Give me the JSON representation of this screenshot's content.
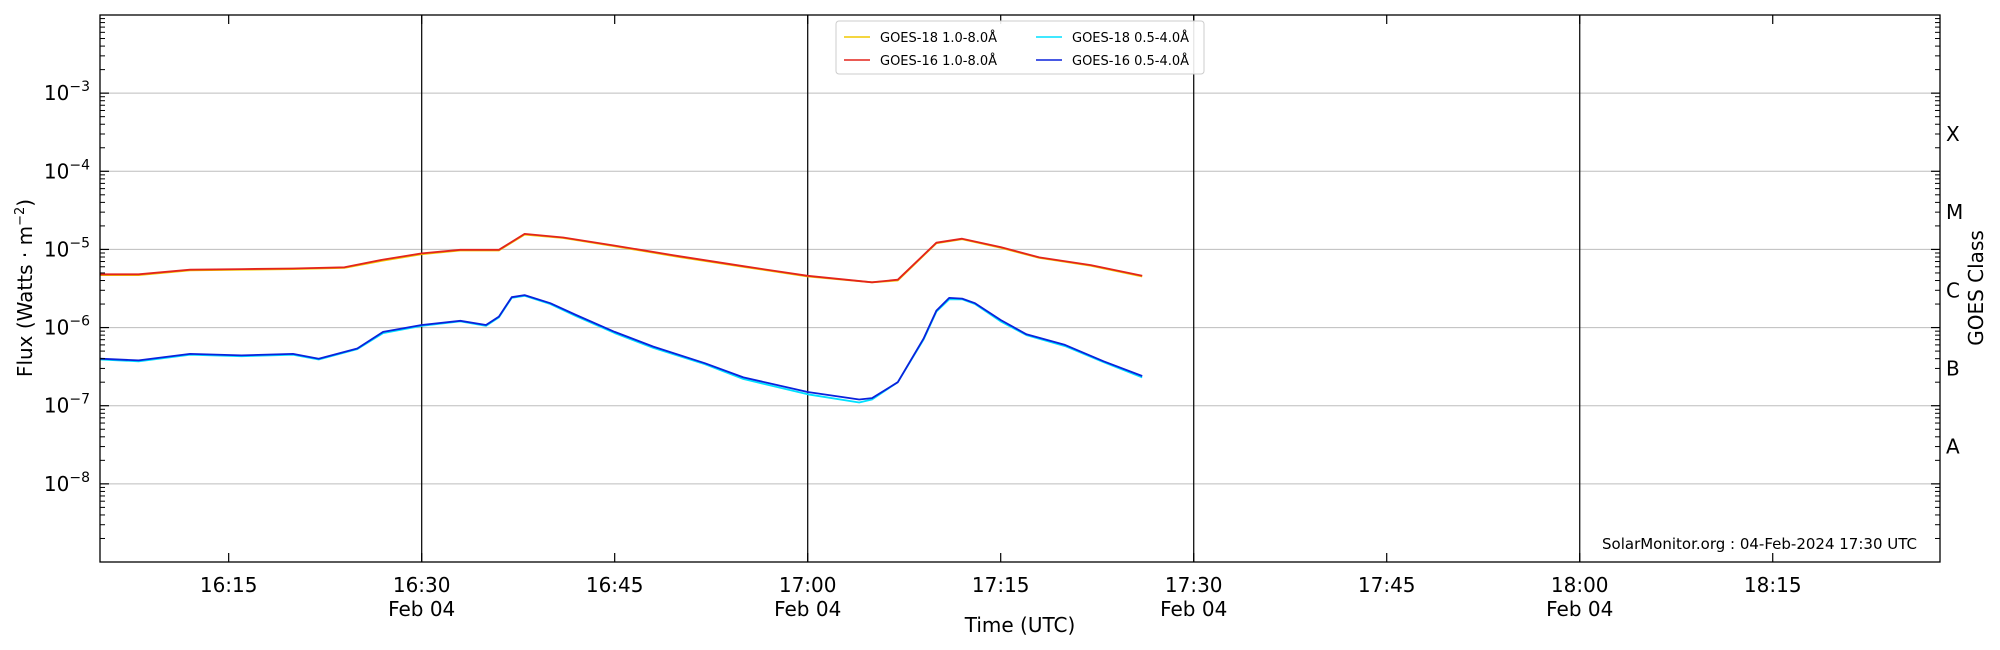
{
  "chart_data": {
    "type": "line",
    "title": "",
    "xlabel": "Time (UTC)",
    "ylabel_main": "Flux (Watts · m",
    "ylabel_sup": "−2",
    "ylabel_close": ")",
    "ylabel_right": "GOES Class",
    "y_scale": "log",
    "ylim": [
      1e-09,
      0.01
    ],
    "xlim": [
      "16:05",
      "18:28"
    ],
    "grid": "horizontal at decades",
    "y_ticks": [
      {
        "value": 0.001,
        "base": "10",
        "exp": "−3"
      },
      {
        "value": 0.0001,
        "base": "10",
        "exp": "−4"
      },
      {
        "value": 1e-05,
        "base": "10",
        "exp": "−5"
      },
      {
        "value": 1e-06,
        "base": "10",
        "exp": "−6"
      },
      {
        "value": 1e-07,
        "base": "10",
        "exp": "−7"
      },
      {
        "value": 1e-08,
        "base": "10",
        "exp": "−8"
      }
    ],
    "x_ticks": [
      {
        "time": "16:15",
        "label": "16:15",
        "sublabel": ""
      },
      {
        "time": "16:30",
        "label": "16:30",
        "sublabel": "Feb 04"
      },
      {
        "time": "16:45",
        "label": "16:45",
        "sublabel": ""
      },
      {
        "time": "17:00",
        "label": "17:00",
        "sublabel": "Feb 04"
      },
      {
        "time": "17:15",
        "label": "17:15",
        "sublabel": ""
      },
      {
        "time": "17:30",
        "label": "17:30",
        "sublabel": "Feb 04"
      },
      {
        "time": "17:45",
        "label": "17:45",
        "sublabel": ""
      },
      {
        "time": "18:00",
        "label": "18:00",
        "sublabel": "Feb 04"
      },
      {
        "time": "18:15",
        "label": "18:15",
        "sublabel": ""
      }
    ],
    "vertical_lines": [
      "16:30",
      "17:00",
      "17:30",
      "18:00"
    ],
    "goes_classes": [
      {
        "label": "X",
        "level": 0.0003
      },
      {
        "label": "M",
        "level": 3e-05
      },
      {
        "label": "C",
        "level": 3e-06
      },
      {
        "label": "B",
        "level": 3e-07
      },
      {
        "label": "A",
        "level": 3e-08
      }
    ],
    "legend_position": "top-center",
    "credit": "SolarMonitor.org : 04-Feb-2024 17:30 UTC",
    "series": [
      {
        "name": "GOES-18 1.0-8.0Å",
        "color": "#f0c800",
        "x": [
          "16:05",
          "16:08",
          "16:12",
          "16:16",
          "16:20",
          "16:24",
          "16:27",
          "16:30",
          "16:33",
          "16:36",
          "16:38",
          "16:41",
          "16:45",
          "16:50",
          "16:55",
          "17:00",
          "17:05",
          "17:07",
          "17:10",
          "17:12",
          "17:15",
          "17:18",
          "17:22",
          "17:26"
        ],
        "y": [
          4.7e-06,
          4.7e-06,
          5.4e-06,
          5.5e-06,
          5.6e-06,
          5.8e-06,
          7.2e-06,
          8.7e-06,
          9.7e-06,
          9.7e-06,
          1.55e-05,
          1.4e-05,
          1.1e-05,
          8e-06,
          6e-06,
          4.5e-06,
          3.8e-06,
          4e-06,
          1.2e-05,
          1.35e-05,
          1.05e-05,
          7.8e-06,
          6.2e-06,
          4.5e-06
        ]
      },
      {
        "name": "GOES-18 0.5-4.0Å",
        "color": "#00e0ff",
        "x": [
          "16:05",
          "16:08",
          "16:12",
          "16:16",
          "16:20",
          "16:22",
          "16:25",
          "16:27",
          "16:30",
          "16:33",
          "16:35",
          "16:36",
          "16:37",
          "16:38",
          "16:40",
          "16:42",
          "16:45",
          "16:48",
          "16:52",
          "16:55",
          "17:00",
          "17:04",
          "17:05",
          "17:07",
          "17:09",
          "17:10",
          "17:11",
          "17:12",
          "17:13",
          "17:15",
          "17:17",
          "17:20",
          "17:23",
          "17:26"
        ],
        "y": [
          3.9e-07,
          3.7e-07,
          4.5e-07,
          4.3e-07,
          4.5e-07,
          3.9e-07,
          5.3e-07,
          8.5e-07,
          1.05e-06,
          1.2e-06,
          1.05e-06,
          1.35e-06,
          2.4e-06,
          2.55e-06,
          2e-06,
          1.4e-06,
          8.5e-07,
          5.5e-07,
          3.4e-07,
          2.2e-07,
          1.4e-07,
          1.1e-07,
          1.2e-07,
          2e-07,
          7e-07,
          1.6e-06,
          2.3e-06,
          2.3e-06,
          2e-06,
          1.2e-06,
          8e-07,
          5.8e-07,
          3.6e-07,
          2.3e-07
        ]
      },
      {
        "name": "GOES-16 1.0-8.0Å",
        "color": "#e3241c",
        "x": [
          "16:05",
          "16:08",
          "16:12",
          "16:16",
          "16:20",
          "16:24",
          "16:27",
          "16:30",
          "16:33",
          "16:36",
          "16:38",
          "16:41",
          "16:45",
          "16:50",
          "16:55",
          "17:00",
          "17:05",
          "17:07",
          "17:10",
          "17:12",
          "17:15",
          "17:18",
          "17:22",
          "17:26"
        ],
        "y": [
          4.8e-06,
          4.8e-06,
          5.5e-06,
          5.6e-06,
          5.7e-06,
          5.9e-06,
          7.4e-06,
          8.9e-06,
          9.9e-06,
          9.9e-06,
          1.58e-05,
          1.42e-05,
          1.12e-05,
          8.2e-06,
          6.1e-06,
          4.6e-06,
          3.8e-06,
          4.1e-06,
          1.22e-05,
          1.37e-05,
          1.07e-05,
          7.9e-06,
          6.3e-06,
          4.6e-06
        ]
      },
      {
        "name": "GOES-16 0.5-4.0Å",
        "color": "#0a22dc",
        "x": [
          "16:05",
          "16:08",
          "16:12",
          "16:16",
          "16:20",
          "16:22",
          "16:25",
          "16:27",
          "16:30",
          "16:33",
          "16:35",
          "16:36",
          "16:37",
          "16:38",
          "16:40",
          "16:42",
          "16:45",
          "16:48",
          "16:52",
          "16:55",
          "17:00",
          "17:04",
          "17:05",
          "17:07",
          "17:09",
          "17:10",
          "17:11",
          "17:12",
          "17:13",
          "17:15",
          "17:17",
          "17:20",
          "17:23",
          "17:26"
        ],
        "y": [
          4e-07,
          3.8e-07,
          4.6e-07,
          4.4e-07,
          4.6e-07,
          4e-07,
          5.4e-07,
          8.8e-07,
          1.08e-06,
          1.22e-06,
          1.08e-06,
          1.38e-06,
          2.45e-06,
          2.6e-06,
          2.05e-06,
          1.45e-06,
          8.8e-07,
          5.7e-07,
          3.5e-07,
          2.3e-07,
          1.5e-07,
          1.2e-07,
          1.25e-07,
          2e-07,
          7.2e-07,
          1.65e-06,
          2.4e-06,
          2.35e-06,
          2.05e-06,
          1.25e-06,
          8.2e-07,
          6e-07,
          3.7e-07,
          2.4e-07
        ]
      }
    ]
  }
}
